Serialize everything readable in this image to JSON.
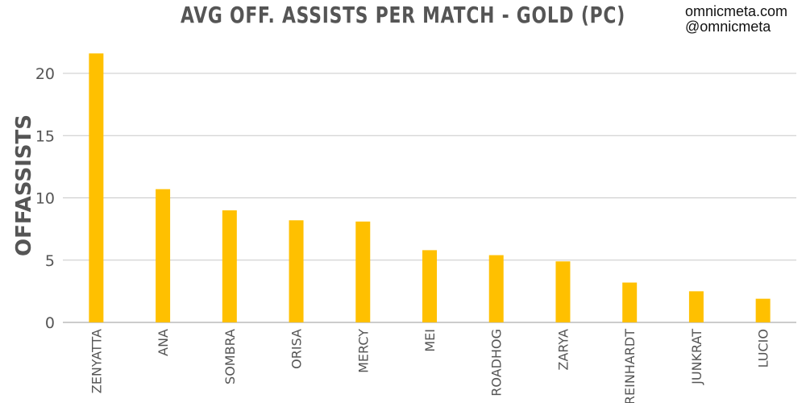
{
  "title": "AVG OFF. ASSISTS PER MATCH - GOLD (PC)",
  "credits": [
    "omnicmeta.com",
    "@omnicmeta"
  ],
  "colors": {
    "bar": "#FFC000",
    "grid": "#c8c8c8",
    "axis": "#999999",
    "text": "#555555"
  },
  "chart_data": {
    "type": "bar",
    "title": "AVG OFF. ASSISTS PER MATCH - GOLD (PC)",
    "xlabel": "",
    "ylabel": "OFFASSISTS",
    "categories": [
      "ZENYATTA",
      "ANA",
      "SOMBRA",
      "ORISA",
      "MERCY",
      "MEI",
      "ROADHOG",
      "ZARYA",
      "REINHARDT",
      "JUNKRAT",
      "LUCIO"
    ],
    "values": [
      21.6,
      10.7,
      9.0,
      8.2,
      8.1,
      5.8,
      5.4,
      4.9,
      3.2,
      2.5,
      1.9
    ],
    "ylim": [
      0,
      22
    ],
    "yticks": [
      0,
      5,
      10,
      15,
      20
    ],
    "grid": true,
    "legend": "none"
  }
}
